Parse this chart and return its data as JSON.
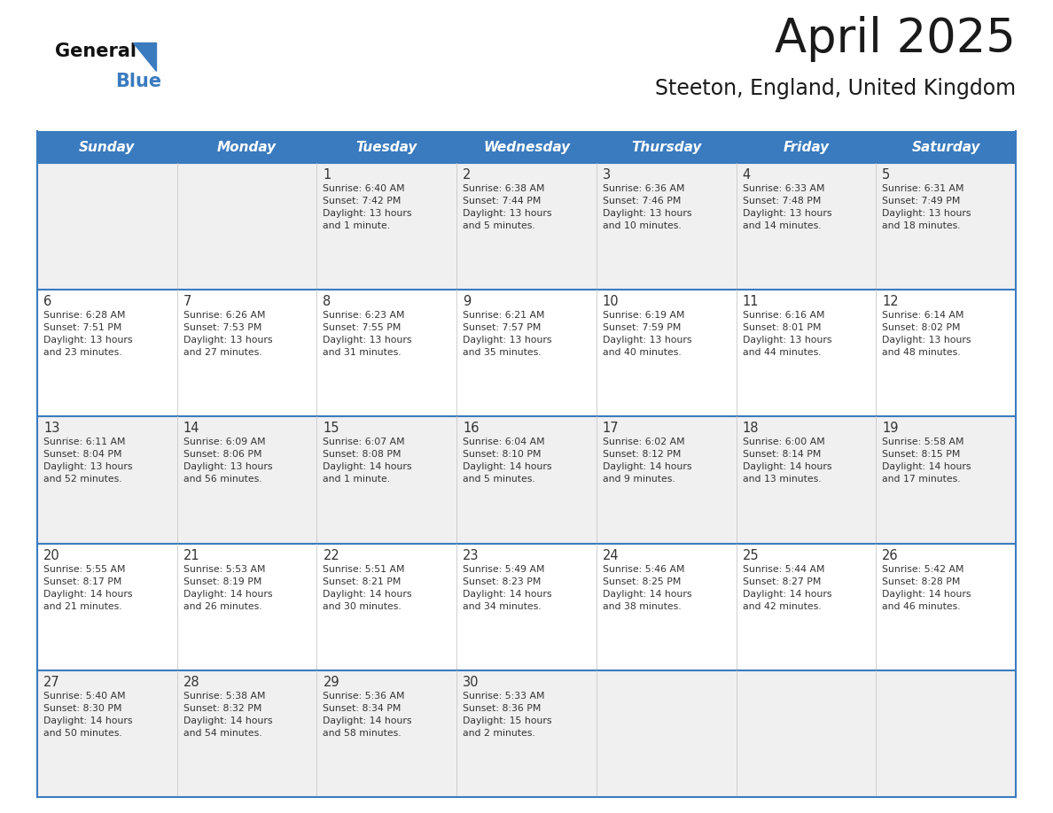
{
  "title": "April 2025",
  "subtitle": "Steeton, England, United Kingdom",
  "header_bg_color": "#3a7bbf",
  "header_text_color": "#ffffff",
  "day_names": [
    "Sunday",
    "Monday",
    "Tuesday",
    "Wednesday",
    "Thursday",
    "Friday",
    "Saturday"
  ],
  "title_color": "#1a1a1a",
  "subtitle_color": "#1a1a1a",
  "cell_text_color": "#333333",
  "day_num_color": "#333333",
  "divider_color": "#3a7bbf",
  "logo_general_color": "#111111",
  "logo_blue_color": "#3a7bbf",
  "logo_triangle_color": "#3a7bbf",
  "row_bg_odd": "#f0f0f0",
  "row_bg_even": "#ffffff",
  "weeks": [
    [
      {
        "day": null,
        "info": null
      },
      {
        "day": null,
        "info": null
      },
      {
        "day": 1,
        "info": "Sunrise: 6:40 AM\nSunset: 7:42 PM\nDaylight: 13 hours\nand 1 minute."
      },
      {
        "day": 2,
        "info": "Sunrise: 6:38 AM\nSunset: 7:44 PM\nDaylight: 13 hours\nand 5 minutes."
      },
      {
        "day": 3,
        "info": "Sunrise: 6:36 AM\nSunset: 7:46 PM\nDaylight: 13 hours\nand 10 minutes."
      },
      {
        "day": 4,
        "info": "Sunrise: 6:33 AM\nSunset: 7:48 PM\nDaylight: 13 hours\nand 14 minutes."
      },
      {
        "day": 5,
        "info": "Sunrise: 6:31 AM\nSunset: 7:49 PM\nDaylight: 13 hours\nand 18 minutes."
      }
    ],
    [
      {
        "day": 6,
        "info": "Sunrise: 6:28 AM\nSunset: 7:51 PM\nDaylight: 13 hours\nand 23 minutes."
      },
      {
        "day": 7,
        "info": "Sunrise: 6:26 AM\nSunset: 7:53 PM\nDaylight: 13 hours\nand 27 minutes."
      },
      {
        "day": 8,
        "info": "Sunrise: 6:23 AM\nSunset: 7:55 PM\nDaylight: 13 hours\nand 31 minutes."
      },
      {
        "day": 9,
        "info": "Sunrise: 6:21 AM\nSunset: 7:57 PM\nDaylight: 13 hours\nand 35 minutes."
      },
      {
        "day": 10,
        "info": "Sunrise: 6:19 AM\nSunset: 7:59 PM\nDaylight: 13 hours\nand 40 minutes."
      },
      {
        "day": 11,
        "info": "Sunrise: 6:16 AM\nSunset: 8:01 PM\nDaylight: 13 hours\nand 44 minutes."
      },
      {
        "day": 12,
        "info": "Sunrise: 6:14 AM\nSunset: 8:02 PM\nDaylight: 13 hours\nand 48 minutes."
      }
    ],
    [
      {
        "day": 13,
        "info": "Sunrise: 6:11 AM\nSunset: 8:04 PM\nDaylight: 13 hours\nand 52 minutes."
      },
      {
        "day": 14,
        "info": "Sunrise: 6:09 AM\nSunset: 8:06 PM\nDaylight: 13 hours\nand 56 minutes."
      },
      {
        "day": 15,
        "info": "Sunrise: 6:07 AM\nSunset: 8:08 PM\nDaylight: 14 hours\nand 1 minute."
      },
      {
        "day": 16,
        "info": "Sunrise: 6:04 AM\nSunset: 8:10 PM\nDaylight: 14 hours\nand 5 minutes."
      },
      {
        "day": 17,
        "info": "Sunrise: 6:02 AM\nSunset: 8:12 PM\nDaylight: 14 hours\nand 9 minutes."
      },
      {
        "day": 18,
        "info": "Sunrise: 6:00 AM\nSunset: 8:14 PM\nDaylight: 14 hours\nand 13 minutes."
      },
      {
        "day": 19,
        "info": "Sunrise: 5:58 AM\nSunset: 8:15 PM\nDaylight: 14 hours\nand 17 minutes."
      }
    ],
    [
      {
        "day": 20,
        "info": "Sunrise: 5:55 AM\nSunset: 8:17 PM\nDaylight: 14 hours\nand 21 minutes."
      },
      {
        "day": 21,
        "info": "Sunrise: 5:53 AM\nSunset: 8:19 PM\nDaylight: 14 hours\nand 26 minutes."
      },
      {
        "day": 22,
        "info": "Sunrise: 5:51 AM\nSunset: 8:21 PM\nDaylight: 14 hours\nand 30 minutes."
      },
      {
        "day": 23,
        "info": "Sunrise: 5:49 AM\nSunset: 8:23 PM\nDaylight: 14 hours\nand 34 minutes."
      },
      {
        "day": 24,
        "info": "Sunrise: 5:46 AM\nSunset: 8:25 PM\nDaylight: 14 hours\nand 38 minutes."
      },
      {
        "day": 25,
        "info": "Sunrise: 5:44 AM\nSunset: 8:27 PM\nDaylight: 14 hours\nand 42 minutes."
      },
      {
        "day": 26,
        "info": "Sunrise: 5:42 AM\nSunset: 8:28 PM\nDaylight: 14 hours\nand 46 minutes."
      }
    ],
    [
      {
        "day": 27,
        "info": "Sunrise: 5:40 AM\nSunset: 8:30 PM\nDaylight: 14 hours\nand 50 minutes."
      },
      {
        "day": 28,
        "info": "Sunrise: 5:38 AM\nSunset: 8:32 PM\nDaylight: 14 hours\nand 54 minutes."
      },
      {
        "day": 29,
        "info": "Sunrise: 5:36 AM\nSunset: 8:34 PM\nDaylight: 14 hours\nand 58 minutes."
      },
      {
        "day": 30,
        "info": "Sunrise: 5:33 AM\nSunset: 8:36 PM\nDaylight: 15 hours\nand 2 minutes."
      },
      {
        "day": null,
        "info": null
      },
      {
        "day": null,
        "info": null
      },
      {
        "day": null,
        "info": null
      }
    ]
  ]
}
